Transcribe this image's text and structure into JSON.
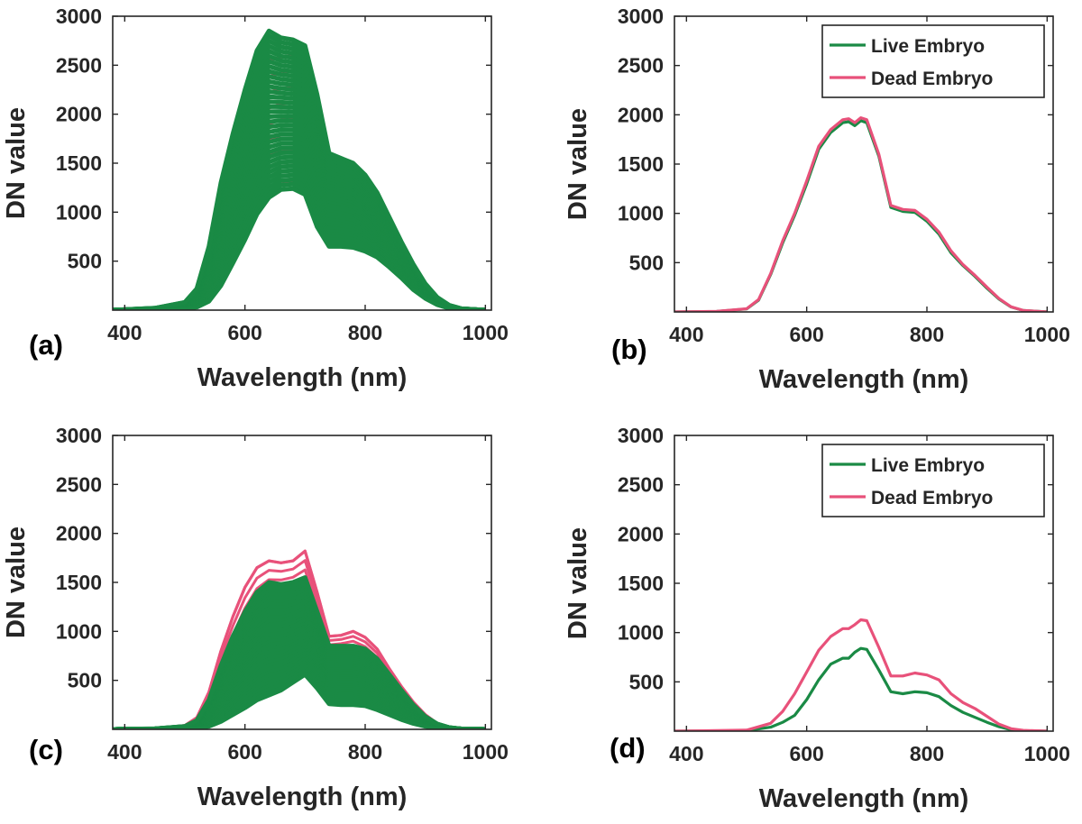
{
  "colors": {
    "live": "#1a8a45",
    "dead": "#e8517a",
    "axis": "#262626"
  },
  "chart_data": [
    {
      "panel": "(a)",
      "type": "line",
      "style": "bundle",
      "xlabel": "Wavelength (nm)",
      "ylabel": "DN value",
      "xlim": [
        380,
        1010
      ],
      "ylim": [
        0,
        3000
      ],
      "xticks": [
        "400",
        "600",
        "800",
        "1000"
      ],
      "yticks": [
        "500",
        "1000",
        "1500",
        "2000",
        "2500",
        "3000"
      ],
      "x": [
        380,
        450,
        500,
        520,
        540,
        560,
        580,
        600,
        620,
        640,
        660,
        680,
        700,
        720,
        740,
        760,
        780,
        800,
        820,
        840,
        860,
        880,
        900,
        920,
        940,
        960,
        1000
      ],
      "series": [
        {
          "role": "dead-bundle",
          "color_key": "dead",
          "low": [
            0,
            3,
            15,
            40,
            120,
            300,
            520,
            780,
            1050,
            1250,
            1310,
            1320,
            1260,
            900,
            690,
            690,
            680,
            630,
            560,
            460,
            350,
            230,
            130,
            60,
            20,
            8,
            0
          ],
          "high": [
            0,
            15,
            60,
            160,
            520,
            1150,
            1650,
            2050,
            2380,
            2550,
            2580,
            2600,
            2560,
            2100,
            1480,
            1480,
            1450,
            1300,
            1100,
            870,
            650,
            430,
            250,
            120,
            40,
            12,
            0
          ]
        },
        {
          "role": "live-bundle",
          "color_key": "live",
          "low": [
            0,
            3,
            12,
            30,
            90,
            250,
            480,
            720,
            980,
            1150,
            1230,
            1240,
            1180,
            850,
            650,
            650,
            640,
            600,
            540,
            440,
            330,
            210,
            120,
            55,
            18,
            6,
            0
          ],
          "high": [
            0,
            20,
            80,
            220,
            650,
            1300,
            1800,
            2250,
            2650,
            2850,
            2780,
            2760,
            2700,
            2200,
            1600,
            1550,
            1500,
            1380,
            1200,
            950,
            700,
            470,
            270,
            130,
            50,
            15,
            0
          ]
        }
      ]
    },
    {
      "panel": "(b)",
      "type": "line",
      "style": "mean",
      "xlabel": "Wavelength (nm)",
      "ylabel": "DN value",
      "xlim": [
        380,
        1010
      ],
      "ylim": [
        0,
        3000
      ],
      "xticks": [
        "400",
        "600",
        "800",
        "1000"
      ],
      "yticks": [
        "500",
        "1000",
        "1500",
        "2000",
        "2500",
        "3000"
      ],
      "legend": {
        "position": "top-right",
        "entries": [
          "Live Embryo",
          "Dead Embryo"
        ]
      },
      "x": [
        380,
        450,
        500,
        520,
        540,
        560,
        580,
        600,
        620,
        640,
        660,
        670,
        680,
        690,
        700,
        720,
        740,
        760,
        780,
        800,
        820,
        840,
        860,
        880,
        900,
        920,
        940,
        960,
        1000
      ],
      "series": [
        {
          "name": "Live Embryo",
          "color_key": "live",
          "values": [
            0,
            5,
            30,
            120,
            380,
            700,
            980,
            1300,
            1650,
            1820,
            1920,
            1930,
            1890,
            1940,
            1920,
            1580,
            1060,
            1020,
            1010,
            920,
            790,
            600,
            470,
            360,
            240,
            130,
            50,
            15,
            0
          ]
        },
        {
          "name": "Dead Embryo",
          "color_key": "dead",
          "values": [
            0,
            6,
            32,
            125,
            390,
            720,
            1000,
            1330,
            1680,
            1850,
            1950,
            1960,
            1920,
            1970,
            1950,
            1600,
            1080,
            1040,
            1030,
            940,
            810,
            620,
            480,
            370,
            250,
            135,
            52,
            16,
            0
          ]
        }
      ]
    },
    {
      "panel": "(c)",
      "type": "line",
      "style": "bundle",
      "xlabel": "Wavelength (nm)",
      "ylabel": "DN value",
      "xlim": [
        380,
        1010
      ],
      "ylim": [
        0,
        3000
      ],
      "xticks": [
        "400",
        "600",
        "800",
        "1000"
      ],
      "yticks": [
        "500",
        "1000",
        "1500",
        "2000",
        "2500",
        "3000"
      ],
      "x": [
        380,
        450,
        500,
        520,
        540,
        560,
        580,
        600,
        620,
        640,
        660,
        680,
        700,
        720,
        740,
        760,
        780,
        800,
        820,
        840,
        860,
        880,
        900,
        920,
        940,
        960,
        1000
      ],
      "series": [
        {
          "role": "dead-bundle",
          "color_key": "dead",
          "low": [
            0,
            2,
            10,
            25,
            80,
            220,
            400,
            600,
            800,
            950,
            1000,
            1050,
            1050,
            800,
            600,
            620,
            600,
            560,
            480,
            380,
            270,
            170,
            90,
            40,
            12,
            4,
            0
          ],
          "high": [
            0,
            8,
            40,
            120,
            380,
            800,
            1150,
            1450,
            1650,
            1720,
            1700,
            1720,
            1820,
            1400,
            950,
            960,
            1000,
            940,
            820,
            620,
            440,
            280,
            150,
            60,
            20,
            6,
            0
          ]
        },
        {
          "role": "live-bundle",
          "color_key": "live",
          "low": [
            0,
            1,
            5,
            10,
            30,
            80,
            150,
            220,
            300,
            350,
            400,
            480,
            560,
            420,
            260,
            250,
            250,
            240,
            200,
            150,
            100,
            60,
            30,
            12,
            4,
            1,
            0
          ],
          "high": [
            0,
            6,
            30,
            90,
            300,
            650,
            950,
            1200,
            1400,
            1500,
            1480,
            1500,
            1550,
            1200,
            850,
            850,
            850,
            820,
            720,
            560,
            400,
            250,
            130,
            55,
            18,
            5,
            0
          ]
        }
      ]
    },
    {
      "panel": "(d)",
      "type": "line",
      "style": "mean",
      "xlabel": "Wavelength (nm)",
      "ylabel": "DN value",
      "xlim": [
        380,
        1010
      ],
      "ylim": [
        0,
        3000
      ],
      "xticks": [
        "400",
        "600",
        "800",
        "1000"
      ],
      "yticks": [
        "500",
        "1000",
        "1500",
        "2000",
        "2500",
        "3000"
      ],
      "legend": {
        "position": "top-right",
        "entries": [
          "Live Embryo",
          "Dead Embryo"
        ]
      },
      "x": [
        380,
        500,
        540,
        560,
        580,
        600,
        620,
        640,
        660,
        670,
        680,
        690,
        700,
        720,
        740,
        760,
        780,
        800,
        820,
        840,
        860,
        880,
        900,
        920,
        940,
        960,
        1000
      ],
      "series": [
        {
          "name": "Live Embryo",
          "color_key": "live",
          "values": [
            0,
            5,
            40,
            90,
            160,
            320,
            520,
            680,
            740,
            740,
            800,
            840,
            830,
            620,
            400,
            380,
            400,
            390,
            350,
            260,
            190,
            140,
            90,
            45,
            15,
            5,
            0
          ]
        },
        {
          "name": "Dead Embryo",
          "color_key": "dead",
          "values": [
            0,
            10,
            80,
            200,
            380,
            600,
            820,
            960,
            1040,
            1040,
            1080,
            1130,
            1120,
            850,
            560,
            560,
            590,
            570,
            520,
            380,
            290,
            230,
            150,
            70,
            25,
            8,
            0
          ]
        }
      ]
    }
  ]
}
